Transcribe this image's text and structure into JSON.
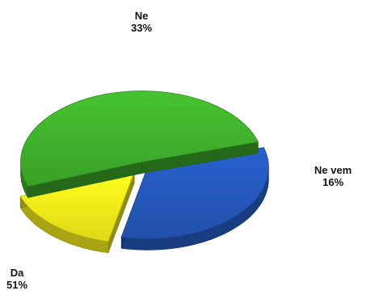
{
  "chart_data": {
    "type": "pie",
    "style": "3d-exploded",
    "title": "",
    "slices": [
      {
        "label": "Da",
        "value": 51,
        "display": "51%",
        "color": "#3fae2c"
      },
      {
        "label": "Ne",
        "value": 33,
        "display": "33%",
        "color": "#2457b8"
      },
      {
        "label": "Ne vem",
        "value": 16,
        "display": "16%",
        "color": "#f2ea1a"
      }
    ]
  }
}
